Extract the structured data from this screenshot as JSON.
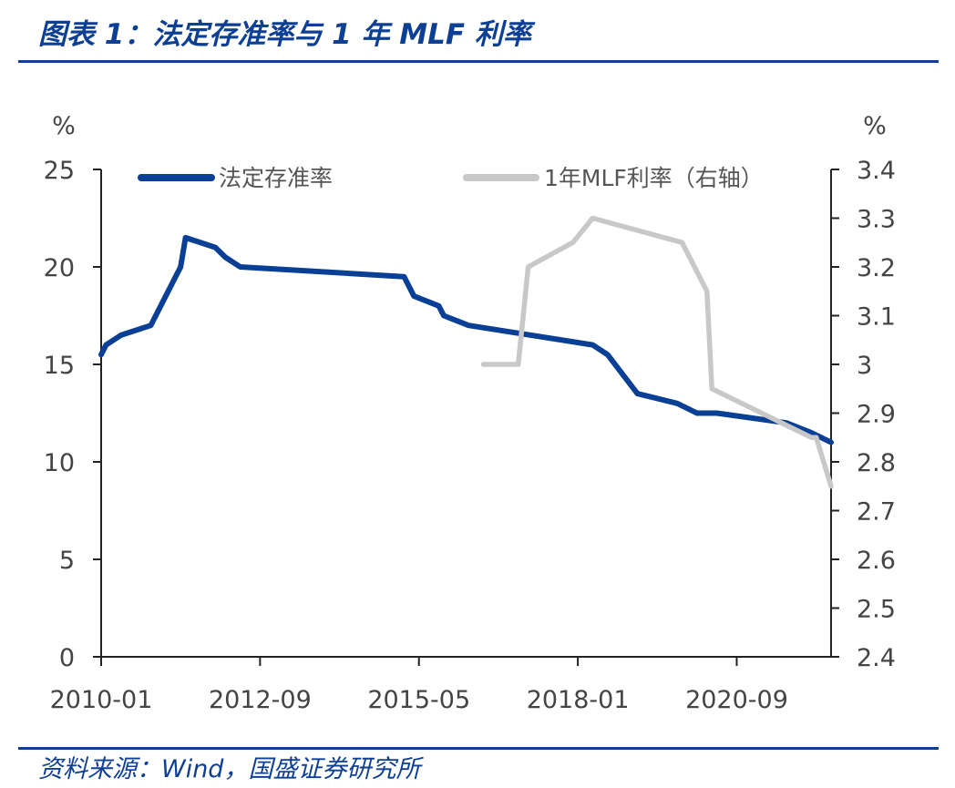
{
  "header": {
    "title": "图表 1：法定存准率与 1 年 MLF 利率"
  },
  "footer": {
    "source": "资料来源：Wind，国盛证券研究所"
  },
  "chart_data": {
    "type": "line",
    "title": "图表 1：法定存准率与 1 年 MLF 利率",
    "left_axis": {
      "unit_label": "%",
      "ylim": [
        0,
        25
      ],
      "ticks": [
        "0",
        "5",
        "10",
        "15",
        "20",
        "25"
      ]
    },
    "right_axis": {
      "unit_label": "%",
      "ylim": [
        2.4,
        3.4
      ],
      "ticks": [
        "2.4",
        "2.5",
        "2.6",
        "2.7",
        "2.8",
        "2.9",
        "3",
        "3.1",
        "3.2",
        "3.3",
        "3.4"
      ]
    },
    "x_axis": {
      "start": "2010-01",
      "end": "2022-04",
      "tick_labels": [
        "2010-01",
        "2012-09",
        "2015-05",
        "2018-01",
        "2020-09"
      ]
    },
    "legend_position": "top",
    "grid": false,
    "colors": {
      "rrr": "#0a3f96",
      "mlf": "#c8c8c8",
      "axis": "#222222"
    },
    "series": [
      {
        "name": "法定存准率",
        "axis": "left",
        "points": [
          [
            "2010-01",
            15.5
          ],
          [
            "2010-02",
            16.0
          ],
          [
            "2010-05",
            16.5
          ],
          [
            "2010-11",
            17.0
          ],
          [
            "2010-12",
            17.5
          ],
          [
            "2011-01",
            18.0
          ],
          [
            "2011-02",
            18.5
          ],
          [
            "2011-03",
            19.0
          ],
          [
            "2011-04",
            19.5
          ],
          [
            "2011-05",
            20.0
          ],
          [
            "2011-06",
            21.5
          ],
          [
            "2011-12",
            21.0
          ],
          [
            "2012-02",
            20.5
          ],
          [
            "2012-05",
            20.0
          ],
          [
            "2015-02",
            19.5
          ],
          [
            "2015-04",
            18.5
          ],
          [
            "2015-09",
            18.0
          ],
          [
            "2015-10",
            17.5
          ],
          [
            "2016-03",
            17.0
          ],
          [
            "2018-04",
            16.0
          ],
          [
            "2018-07",
            15.5
          ],
          [
            "2018-10",
            14.5
          ],
          [
            "2019-01",
            13.5
          ],
          [
            "2019-09",
            13.0
          ],
          [
            "2020-01",
            12.5
          ],
          [
            "2020-05",
            12.5
          ],
          [
            "2021-07",
            12.0
          ],
          [
            "2021-12",
            11.5
          ],
          [
            "2022-04",
            11.0
          ]
        ]
      },
      {
        "name": "1年MLF利率（右轴）",
        "axis": "right",
        "points": [
          [
            "2016-06",
            3.0
          ],
          [
            "2017-01",
            3.0
          ],
          [
            "2017-02",
            3.1
          ],
          [
            "2017-03",
            3.2
          ],
          [
            "2017-12",
            3.25
          ],
          [
            "2018-04",
            3.3
          ],
          [
            "2019-10",
            3.25
          ],
          [
            "2020-03",
            3.15
          ],
          [
            "2020-04",
            2.95
          ],
          [
            "2021-12",
            2.85
          ],
          [
            "2022-01",
            2.85
          ],
          [
            "2022-04",
            2.75
          ]
        ]
      }
    ]
  }
}
